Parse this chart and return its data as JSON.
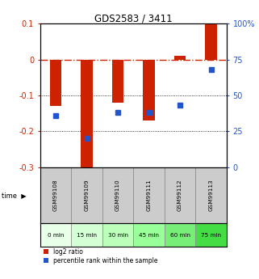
{
  "title": "GDS2583 / 3411",
  "samples": [
    "GSM99108",
    "GSM99109",
    "GSM99110",
    "GSM99111",
    "GSM99112",
    "GSM99113"
  ],
  "time_labels": [
    "0 min",
    "15 min",
    "30 min",
    "45 min",
    "60 min",
    "75 min"
  ],
  "log2_ratios": [
    -0.13,
    -0.32,
    -0.12,
    -0.17,
    0.01,
    0.1
  ],
  "percentile_ranks": [
    36,
    20,
    38,
    38,
    43,
    68
  ],
  "ylim_left": [
    -0.3,
    0.1
  ],
  "ylim_right": [
    0,
    100
  ],
  "bar_color": "#cc2200",
  "dot_color": "#2255cc",
  "zero_line_color": "#cc2200",
  "grid_color": "#000000",
  "bg_color": "#ffffff",
  "time_bg_colors": [
    "#e8ffe8",
    "#d4ffd4",
    "#bbffbb",
    "#99ff99",
    "#77ee77",
    "#44dd44"
  ],
  "legend_bar_label": "log2 ratio",
  "legend_dot_label": "percentile rank within the sample"
}
